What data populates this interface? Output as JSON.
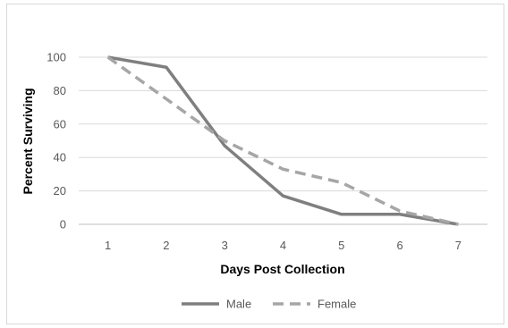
{
  "chart_data": {
    "type": "line",
    "title": "",
    "xlabel": "Days Post Collection",
    "ylabel": "Percent Surviving",
    "x": [
      1,
      2,
      3,
      4,
      5,
      6,
      7
    ],
    "ylim": [
      0,
      100
    ],
    "yticks": [
      0,
      20,
      40,
      60,
      80,
      100
    ],
    "xlim": [
      0.5,
      7.5
    ],
    "grid": true,
    "legend": "bottom",
    "series": [
      {
        "name": "Male",
        "values": [
          100,
          94,
          47,
          17,
          6,
          6,
          0
        ],
        "color": "#7f7f7f",
        "style": "solid"
      },
      {
        "name": "Female",
        "values": [
          100,
          75,
          50,
          33,
          25,
          8,
          0
        ],
        "color": "#a6a6a6",
        "style": "dashed"
      }
    ]
  }
}
